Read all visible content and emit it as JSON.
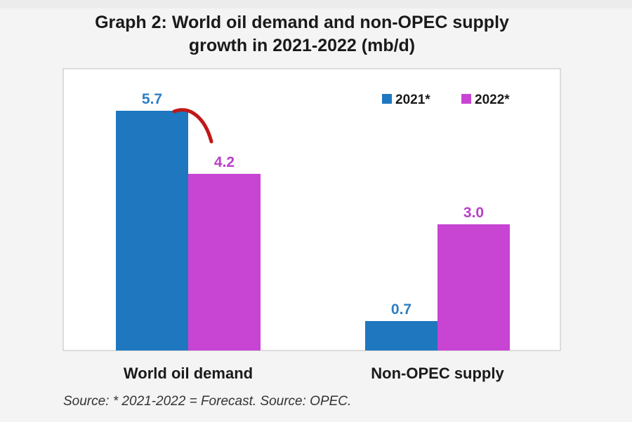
{
  "chart_data": {
    "type": "bar",
    "title_lines": [
      "Graph 2: World oil demand and non-OPEC supply",
      "growth in 2021-2022 (mb/d)"
    ],
    "categories": [
      "World oil demand",
      "Non-OPEC supply"
    ],
    "series": [
      {
        "name": "2021*",
        "values": [
          5.7,
          0.7
        ],
        "labels": [
          "5.7",
          "0.7"
        ],
        "color": "#1f77c0",
        "label_color": "#2e7ec4"
      },
      {
        "name": "2022*",
        "values": [
          4.2,
          3.0
        ],
        "labels": [
          "4.2",
          "3.0"
        ],
        "color": "#c844d3",
        "label_color": "#b940c8"
      }
    ],
    "ylim": [
      0,
      6.7
    ],
    "grid": false,
    "legend_position": "top-right",
    "xlabel": "",
    "ylabel": "",
    "annotation": "red hand-drawn arc from 5.7 bar toward 4.2 bar",
    "source": "Source: * 2021-2022 = Forecast. Source: OPEC."
  },
  "colors": {
    "annotation": "#c01818",
    "plot_border": "#bfbfbf",
    "plot_background": "#ffffff"
  }
}
